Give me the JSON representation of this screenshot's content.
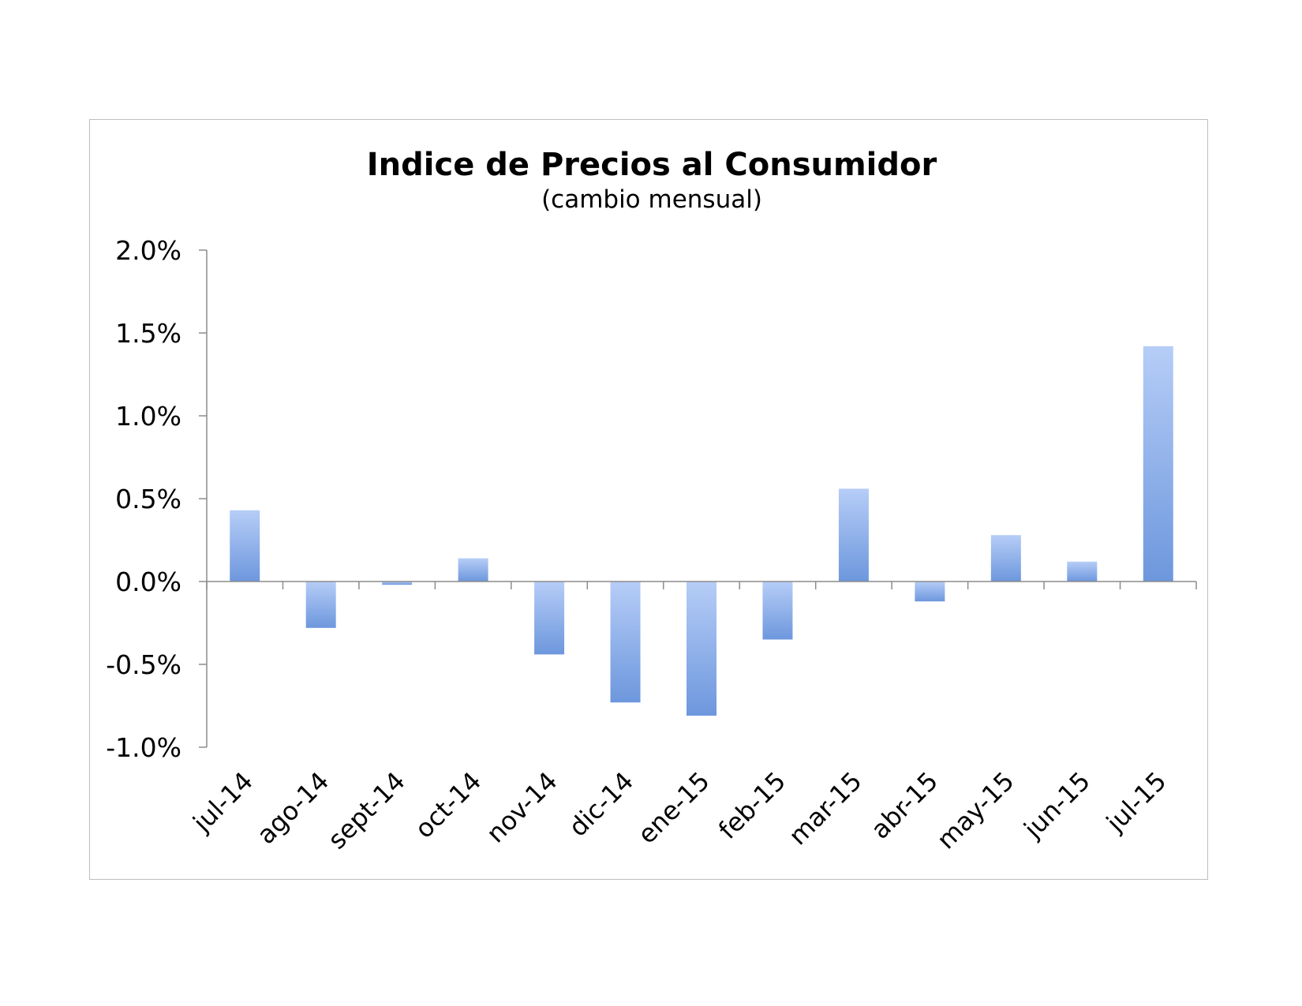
{
  "chart_data": {
    "type": "bar",
    "title": "Indice de Precios al Consumidor",
    "subtitle": "(cambio mensual)",
    "xlabel": "",
    "ylabel": "",
    "categories": [
      "jul-14",
      "ago-14",
      "sept-14",
      "oct-14",
      "nov-14",
      "dic-14",
      "ene-15",
      "feb-15",
      "mar-15",
      "abr-15",
      "may-15",
      "jun-15",
      "jul-15"
    ],
    "values": [
      0.43,
      -0.28,
      -0.02,
      0.14,
      -0.44,
      -0.73,
      -0.81,
      -0.35,
      0.56,
      -0.12,
      0.28,
      0.12,
      1.42
    ],
    "ylim": [
      -1.0,
      2.0
    ],
    "yticks": [
      2.0,
      1.5,
      1.0,
      0.5,
      0.0,
      -0.5,
      -1.0
    ],
    "ytick_labels": [
      "2.0%",
      "1.5%",
      "1.0%",
      "0.5%",
      "0.0%",
      "-0.5%",
      "-1.0%"
    ],
    "grid": false,
    "legend": "none",
    "colors": {
      "bar_top": "#b6cdf7",
      "bar_bottom": "#6d97dd",
      "axis": "#8c8c8c",
      "frame": "#bdbdbd"
    }
  }
}
